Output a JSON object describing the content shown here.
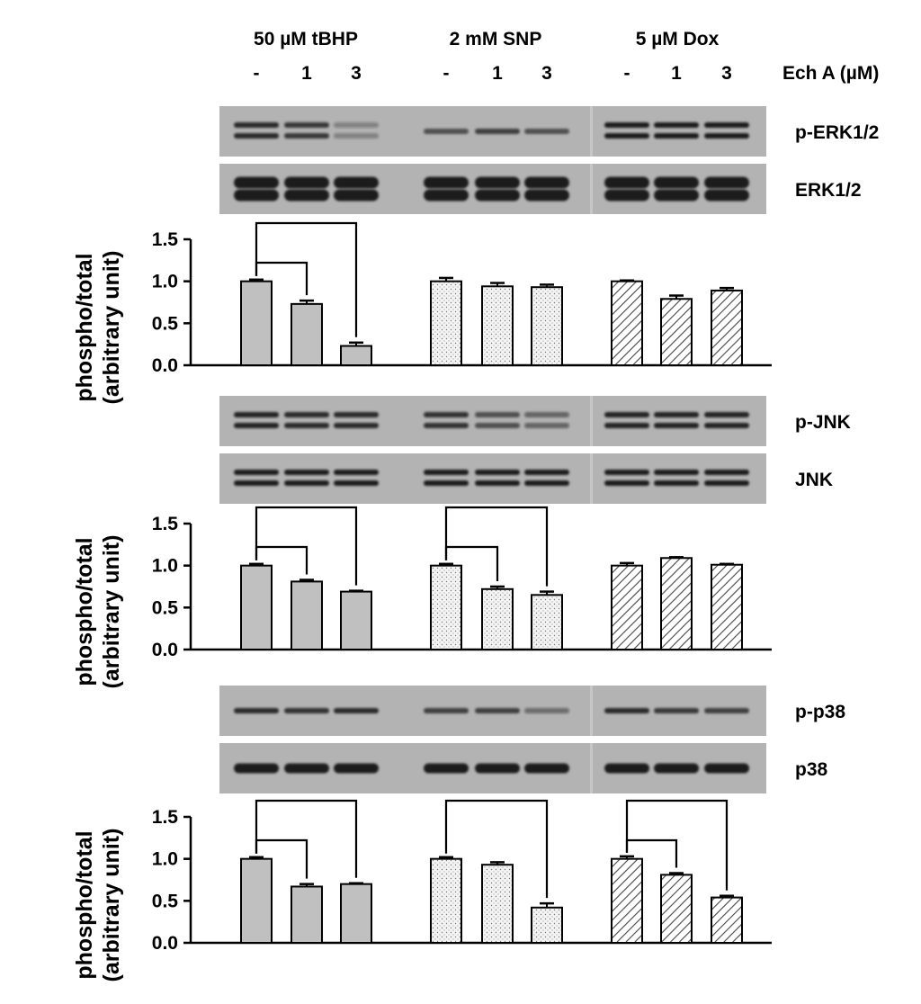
{
  "header": {
    "treatments": [
      "50 µM tBHP",
      "2 mM SNP",
      "5 µM Dox"
    ],
    "doses": [
      "-",
      "1",
      "3"
    ],
    "dose_label": "Ech A (µM)"
  },
  "colors": {
    "tBHP": "#c0c0c0",
    "SNP_fill": "#f2f2f2",
    "Dox_hatch": "#444444",
    "blot_background": "#b3b3b3",
    "band": "#1e1e1e"
  },
  "chart_data": [
    {
      "type": "bar",
      "panel": "ERK",
      "blot_labels": [
        "p-ERK1/2",
        "ERK1/2"
      ],
      "ylabel": "phospho/total (arbitrary unit)",
      "ylabel_lines": [
        "phospho/total",
        "(arbitrary unit)"
      ],
      "ylim": [
        0,
        1.5
      ],
      "yticks": [
        "1.5",
        "1.0",
        "0.5",
        "0.0"
      ],
      "groups": [
        "50 µM tBHP",
        "2 mM SNP",
        "5 µM Dox"
      ],
      "categories": [
        "-",
        "1",
        "3"
      ],
      "series": [
        {
          "name": "50 µM tBHP",
          "values": [
            1.0,
            0.73,
            0.23
          ],
          "errors": [
            0.02,
            0.04,
            0.04
          ]
        },
        {
          "name": "2 mM SNP",
          "values": [
            1.0,
            0.94,
            0.93
          ],
          "errors": [
            0.04,
            0.04,
            0.03
          ]
        },
        {
          "name": "5 µM Dox",
          "values": [
            1.0,
            0.79,
            0.89
          ],
          "errors": [
            0.01,
            0.04,
            0.03
          ]
        }
      ],
      "significance_brackets": [
        {
          "group": 0,
          "from": 0,
          "to": [
            1,
            2
          ]
        }
      ],
      "bands": {
        "phospho": [
          {
            "type": "doublet",
            "intensity": [
              0.9,
              0.8,
              0.2
            ]
          },
          {
            "type": "single",
            "intensity": [
              0.6,
              0.75,
              0.6
            ]
          },
          {
            "type": "doublet",
            "intensity": [
              1.0,
              1.0,
              1.0
            ]
          }
        ],
        "total": [
          {
            "type": "doublet-thick",
            "intensity": [
              1.0,
              1.0,
              1.0
            ]
          },
          {
            "type": "doublet-thick",
            "intensity": [
              1.0,
              1.0,
              1.0
            ]
          },
          {
            "type": "doublet-thick",
            "intensity": [
              1.0,
              1.0,
              1.0
            ]
          }
        ]
      }
    },
    {
      "type": "bar",
      "panel": "JNK",
      "blot_labels": [
        "p-JNK",
        "JNK"
      ],
      "ylabel": "phospho/total (arbitrary unit)",
      "ylabel_lines": [
        "phospho/total",
        "(arbitrary unit)"
      ],
      "ylim": [
        0,
        1.5
      ],
      "yticks": [
        "1.5",
        "1.0",
        "0.5",
        "0.0"
      ],
      "groups": [
        "50 µM tBHP",
        "2 mM SNP",
        "5 µM Dox"
      ],
      "categories": [
        "-",
        "1",
        "3"
      ],
      "series": [
        {
          "name": "50 µM tBHP",
          "values": [
            1.0,
            0.81,
            0.69
          ],
          "errors": [
            0.02,
            0.02,
            0.01
          ]
        },
        {
          "name": "2 mM SNP",
          "values": [
            1.0,
            0.72,
            0.65
          ],
          "errors": [
            0.02,
            0.03,
            0.04
          ]
        },
        {
          "name": "5 µM Dox",
          "values": [
            1.0,
            1.09,
            1.01
          ],
          "errors": [
            0.03,
            0.01,
            0.01
          ]
        }
      ],
      "significance_brackets": [
        {
          "group": 0,
          "from": 0,
          "to": [
            1,
            2
          ]
        },
        {
          "group": 1,
          "from": 0,
          "to": [
            1,
            2
          ]
        }
      ],
      "bands": {
        "phospho": [
          {
            "type": "doublet",
            "intensity": [
              0.95,
              0.9,
              0.9
            ]
          },
          {
            "type": "doublet",
            "intensity": [
              0.85,
              0.6,
              0.45
            ]
          },
          {
            "type": "doublet",
            "intensity": [
              0.95,
              0.95,
              0.95
            ]
          }
        ],
        "total": [
          {
            "type": "doublet",
            "intensity": [
              1.0,
              1.0,
              1.0
            ]
          },
          {
            "type": "doublet",
            "intensity": [
              1.0,
              1.0,
              1.0
            ]
          },
          {
            "type": "doublet",
            "intensity": [
              1.0,
              1.0,
              1.0
            ]
          }
        ]
      }
    },
    {
      "type": "bar",
      "panel": "p38",
      "blot_labels": [
        "p-p38",
        "p38"
      ],
      "ylabel": "phospho/total (arbitrary unit)",
      "ylabel_lines": [
        "phospho/total",
        "(arbitrary unit)"
      ],
      "ylim": [
        0,
        1.5
      ],
      "yticks": [
        "1.5",
        "1.0",
        "0.5",
        "0.0"
      ],
      "groups": [
        "50 µM tBHP",
        "2 mM SNP",
        "5 µM Dox"
      ],
      "categories": [
        "-",
        "1",
        "3"
      ],
      "series": [
        {
          "name": "50 µM tBHP",
          "values": [
            1.0,
            0.67,
            0.7
          ],
          "errors": [
            0.02,
            0.03,
            0.01
          ]
        },
        {
          "name": "2 mM SNP",
          "values": [
            1.0,
            0.93,
            0.42
          ],
          "errors": [
            0.02,
            0.03,
            0.05
          ]
        },
        {
          "name": "5 µM Dox",
          "values": [
            1.0,
            0.81,
            0.54
          ],
          "errors": [
            0.03,
            0.02,
            0.02
          ]
        }
      ],
      "significance_brackets": [
        {
          "group": 0,
          "from": 0,
          "to": [
            1,
            2
          ]
        },
        {
          "group": 1,
          "from": 0,
          "to": [
            2
          ]
        },
        {
          "group": 2,
          "from": 0,
          "to": [
            1,
            2
          ]
        }
      ],
      "bands": {
        "phospho": [
          {
            "type": "single",
            "intensity": [
              0.9,
              0.85,
              0.9
            ]
          },
          {
            "type": "single",
            "intensity": [
              0.75,
              0.75,
              0.35
            ]
          },
          {
            "type": "single",
            "intensity": [
              0.9,
              0.8,
              0.75
            ]
          }
        ],
        "total": [
          {
            "type": "single-thick",
            "intensity": [
              1.0,
              1.0,
              1.0
            ]
          },
          {
            "type": "single-thick",
            "intensity": [
              1.0,
              1.0,
              1.0
            ]
          },
          {
            "type": "single-thick",
            "intensity": [
              1.0,
              1.0,
              1.0
            ]
          }
        ]
      }
    }
  ]
}
